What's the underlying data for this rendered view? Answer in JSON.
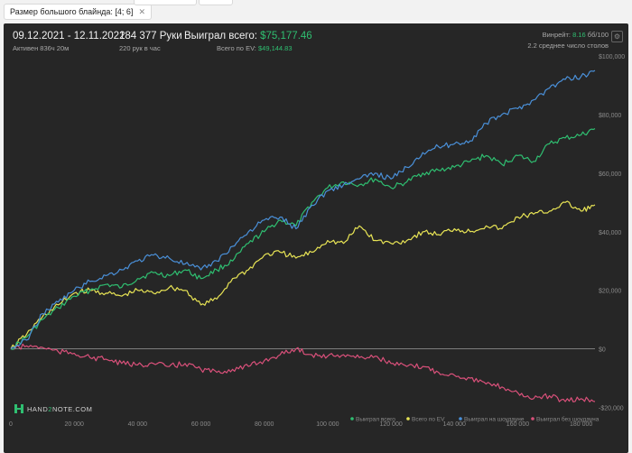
{
  "filter": {
    "label": "Размер большого блайнда: [4; 6]"
  },
  "stats": {
    "date_range": "09.12.2021 - 12.11.2022",
    "active": "Активен 836ч 20м",
    "hands": "184 377 Руки",
    "hands_rate": "220 рук в час",
    "won_label": "Выиграл всего:",
    "won_value": "$75,177.46",
    "ev_label": "Всего по EV:",
    "ev_value": "$49,144.83",
    "winrate_label": "Винрейт:",
    "winrate_value": "8.16",
    "winrate_unit": "бб/100",
    "tables": "2.2 среднее число столов"
  },
  "brand": {
    "left": "HAND",
    "middle": "2",
    "right": "NOTE.COM"
  },
  "colors": {
    "won_total": "#2fbf71",
    "ev_total": "#e8e455",
    "showdown": "#4a90d9",
    "no_showdown": "#d9507a",
    "axis_text": "#8a8a8a",
    "zero_line": "#9a9a9a"
  },
  "chart_data": {
    "type": "line",
    "xlabel": "",
    "ylabel": "",
    "xlim": [
      0,
      184377
    ],
    "ylim": [
      -22000,
      100000
    ],
    "x_ticks": [
      0,
      20000,
      40000,
      60000,
      80000,
      100000,
      120000,
      140000,
      160000,
      180000
    ],
    "x_tick_labels": [
      "0",
      "20 000",
      "40 000",
      "60 000",
      "80 000",
      "100 000",
      "120 000",
      "140 000",
      "160 000",
      "180 000"
    ],
    "y_ticks": [
      -20000,
      0,
      20000,
      40000,
      60000,
      80000,
      100000
    ],
    "y_tick_labels": [
      "-$20,000",
      "$0",
      "$20,000",
      "$40,000",
      "$60,000",
      "$80,000",
      "$100,000"
    ],
    "grid": false,
    "legend_position": "bottom-right",
    "series": [
      {
        "name": "Выиграл всего",
        "color": "#2fbf71",
        "x": [
          0,
          5000,
          10000,
          15000,
          20000,
          25000,
          30000,
          35000,
          40000,
          45000,
          50000,
          55000,
          60000,
          65000,
          70000,
          75000,
          80000,
          85000,
          90000,
          95000,
          100000,
          105000,
          110000,
          115000,
          120000,
          125000,
          130000,
          135000,
          140000,
          145000,
          150000,
          155000,
          160000,
          165000,
          170000,
          175000,
          180000,
          184377
        ],
        "y": [
          0,
          4000,
          10000,
          14000,
          18000,
          20000,
          22000,
          21000,
          24000,
          26000,
          25000,
          27000,
          24000,
          27000,
          30000,
          36000,
          40000,
          44000,
          42000,
          50000,
          55000,
          57000,
          56000,
          58000,
          55000,
          57000,
          60000,
          61000,
          62000,
          64000,
          66000,
          63000,
          66000,
          64000,
          70000,
          72000,
          73000,
          75177
        ]
      },
      {
        "name": "Всего по EV",
        "color": "#e8e455",
        "x": [
          0,
          5000,
          10000,
          15000,
          20000,
          25000,
          30000,
          35000,
          40000,
          45000,
          50000,
          55000,
          60000,
          65000,
          70000,
          75000,
          80000,
          85000,
          90000,
          95000,
          100000,
          105000,
          110000,
          115000,
          120000,
          125000,
          130000,
          135000,
          140000,
          145000,
          150000,
          155000,
          160000,
          165000,
          170000,
          175000,
          180000,
          184377
        ],
        "y": [
          0,
          5000,
          11000,
          15000,
          19000,
          20000,
          19000,
          18000,
          20000,
          19000,
          21000,
          20000,
          15000,
          17000,
          24000,
          27000,
          32000,
          33000,
          31000,
          33000,
          37000,
          36000,
          42000,
          37000,
          36000,
          37000,
          40000,
          39000,
          41000,
          40000,
          42000,
          41000,
          45000,
          46000,
          47000,
          50000,
          47000,
          49145
        ]
      },
      {
        "name": "Выиграл на шоудауне",
        "color": "#4a90d9",
        "x": [
          0,
          5000,
          10000,
          15000,
          20000,
          25000,
          30000,
          35000,
          40000,
          45000,
          50000,
          55000,
          60000,
          65000,
          70000,
          75000,
          80000,
          85000,
          90000,
          95000,
          100000,
          105000,
          110000,
          115000,
          120000,
          125000,
          130000,
          135000,
          140000,
          145000,
          150000,
          155000,
          160000,
          165000,
          170000,
          175000,
          180000,
          184377
        ],
        "y": [
          0,
          3000,
          12000,
          16000,
          20000,
          23000,
          25000,
          27000,
          30000,
          32000,
          31000,
          29000,
          27000,
          30000,
          35000,
          40000,
          44000,
          45000,
          41000,
          49000,
          54000,
          56000,
          58000,
          60000,
          58000,
          62000,
          67000,
          69000,
          70000,
          71000,
          77000,
          80000,
          82000,
          85000,
          89000,
          92000,
          93000,
          95000
        ]
      },
      {
        "name": "Выиграл без шоудауна",
        "color": "#d9507a",
        "x": [
          0,
          5000,
          10000,
          15000,
          20000,
          25000,
          30000,
          35000,
          40000,
          45000,
          50000,
          55000,
          60000,
          65000,
          70000,
          75000,
          80000,
          85000,
          90000,
          95000,
          100000,
          105000,
          110000,
          115000,
          120000,
          125000,
          130000,
          135000,
          140000,
          145000,
          150000,
          155000,
          160000,
          165000,
          170000,
          175000,
          180000,
          184377
        ],
        "y": [
          0,
          1000,
          500,
          -1000,
          -1500,
          -3000,
          -3500,
          -5000,
          -5500,
          -5000,
          -6000,
          -5000,
          -7000,
          -8000,
          -7000,
          -6000,
          -4000,
          -2000,
          0,
          -2000,
          -2500,
          -2000,
          -3000,
          -2500,
          -5000,
          -6000,
          -6000,
          -8000,
          -9000,
          -10000,
          -12000,
          -13000,
          -15000,
          -17000,
          -16000,
          -18000,
          -17000,
          -18000
        ]
      }
    ]
  }
}
